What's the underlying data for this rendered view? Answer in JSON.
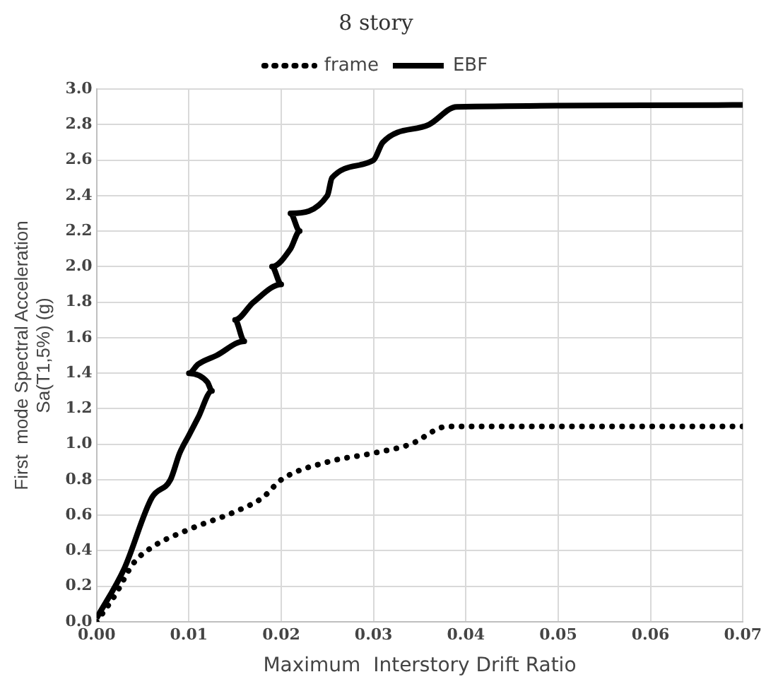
{
  "chart_data": {
    "type": "line",
    "title": "8 story",
    "xlabel": "Maximum  Interstory Drift Ratio",
    "ylabel": "First  mode Spectral Acceleration\nSa(T1,5%) (g)",
    "xlim": [
      0,
      0.07
    ],
    "xticks": [
      {
        "value": 0,
        "label": "0.00"
      },
      {
        "value": 0.01,
        "label": "0.01"
      },
      {
        "value": 0.02,
        "label": "0.02"
      },
      {
        "value": 0.03,
        "label": "0.03"
      },
      {
        "value": 0.04,
        "label": "0.04"
      },
      {
        "value": 0.05,
        "label": "0.05"
      },
      {
        "value": 0.06,
        "label": "0.06"
      },
      {
        "value": 0.07,
        "label": "0.07"
      }
    ],
    "ylim": [
      0,
      3
    ],
    "yticks": [
      {
        "value": 0,
        "label": "0.0"
      },
      {
        "value": 0.2,
        "label": "0.2"
      },
      {
        "value": 0.4,
        "label": "0.4"
      },
      {
        "value": 0.6,
        "label": "0.6"
      },
      {
        "value": 0.8,
        "label": "0.8"
      },
      {
        "value": 1,
        "label": "1.0"
      },
      {
        "value": 1.2,
        "label": "1.2"
      },
      {
        "value": 1.4,
        "label": "1.4"
      },
      {
        "value": 1.6,
        "label": "1.6"
      },
      {
        "value": 1.8,
        "label": "1.8"
      },
      {
        "value": 2,
        "label": "2.0"
      },
      {
        "value": 2.2,
        "label": "2.2"
      },
      {
        "value": 2.4,
        "label": "2.4"
      },
      {
        "value": 2.6,
        "label": "2.6"
      },
      {
        "value": 2.8,
        "label": "2.8"
      },
      {
        "value": 3,
        "label": "3.0"
      }
    ],
    "grid": true,
    "legend": "top",
    "marker": "none",
    "series": [
      {
        "name": "frame",
        "color": "#000000",
        "line_style": "dotted",
        "x": [
          0,
          0.002,
          0.004,
          0.006,
          0.01,
          0.015,
          0.018,
          0.02,
          0.025,
          0.03,
          0.034,
          0.038,
          0.07
        ],
        "values": [
          0,
          0.15,
          0.33,
          0.42,
          0.52,
          0.62,
          0.7,
          0.8,
          0.9,
          0.95,
          1.0,
          1.1,
          1.1
        ]
      },
      {
        "name": "EBF",
        "color": "#000000",
        "line_style": "solid",
        "x": [
          0,
          0.003,
          0.006,
          0.008,
          0.009,
          0.01,
          0.011,
          0.0125,
          0.012,
          0.01,
          0.011,
          0.013,
          0.016,
          0.015,
          0.017,
          0.02,
          0.019,
          0.021,
          0.022,
          0.021,
          0.025,
          0.0255,
          0.03,
          0.031,
          0.036,
          0.039,
          0.07
        ],
        "values": [
          0.02,
          0.3,
          0.7,
          0.8,
          0.95,
          1.05,
          1.15,
          1.3,
          1.35,
          1.4,
          1.45,
          1.5,
          1.58,
          1.7,
          1.8,
          1.9,
          2.0,
          2.1,
          2.2,
          2.3,
          2.4,
          2.5,
          2.6,
          2.7,
          2.8,
          2.9,
          2.91
        ]
      }
    ]
  }
}
